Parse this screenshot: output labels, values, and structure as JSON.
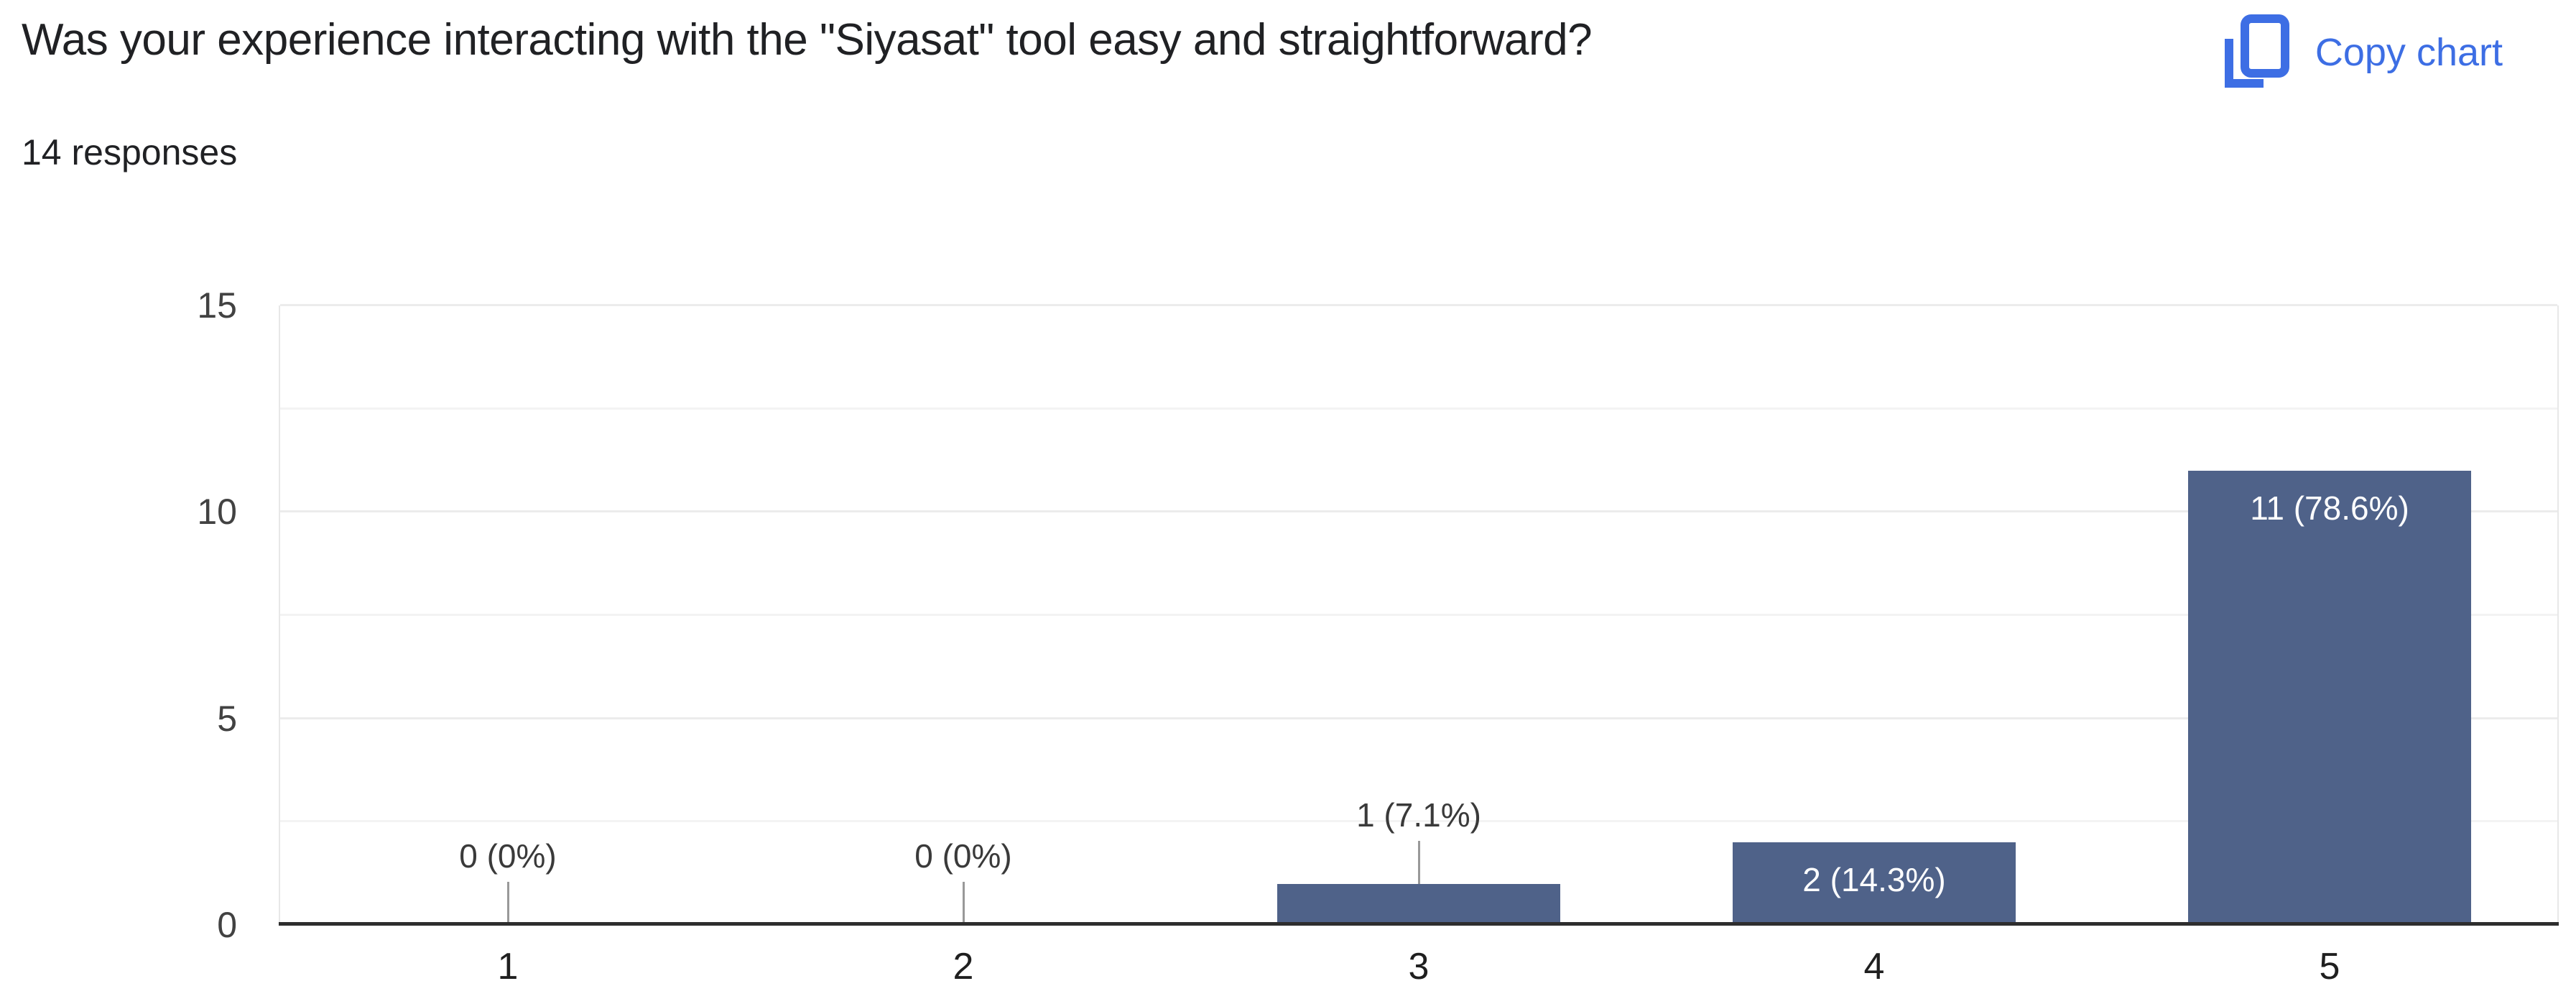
{
  "header": {
    "title": "Was your experience interacting with the \"Siyasat\" tool easy and straightforward?",
    "response_count": "14 responses",
    "copy_chart_label": "Copy chart"
  },
  "colors": {
    "text": "#202124",
    "link_blue": "#3d6ee4",
    "bar": "#4f6289",
    "axis_line": "#2e2e2e",
    "grid_major": "#ececec",
    "grid_minor": "#f3f3f3",
    "plot_border": "#e8e8e8",
    "ylabel": "#424242",
    "xlabel": "#1f1f1f",
    "label_dark": "#3a3a3a",
    "label_light": "#ffffff",
    "stub": "#999999"
  },
  "chart_data": {
    "type": "bar",
    "title": "Was your experience interacting with the \"Siyasat\" tool easy and straightforward?",
    "subtitle": "14 responses",
    "categories": [
      "1",
      "2",
      "3",
      "4",
      "5"
    ],
    "values": [
      0,
      0,
      1,
      2,
      11
    ],
    "total_responses": 14,
    "points": [
      {
        "category": "1",
        "value": 0,
        "label": "0 (0%)",
        "label_position": "above"
      },
      {
        "category": "2",
        "value": 0,
        "label": "0 (0%)",
        "label_position": "above"
      },
      {
        "category": "3",
        "value": 1,
        "label": "1 (7.1%)",
        "label_position": "above"
      },
      {
        "category": "4",
        "value": 2,
        "label": "2 (14.3%)",
        "label_position": "inside"
      },
      {
        "category": "5",
        "value": 11,
        "label": "11 (78.6%)",
        "label_position": "inside"
      }
    ],
    "xlabel": "",
    "ylabel": "",
    "ylim": [
      0,
      15
    ],
    "yticks": [
      "0",
      "5",
      "10",
      "15"
    ],
    "minor_yticks": [
      2.5,
      7.5,
      12.5
    ],
    "grid": true,
    "legend": false,
    "bar_color": "#4f6289"
  }
}
